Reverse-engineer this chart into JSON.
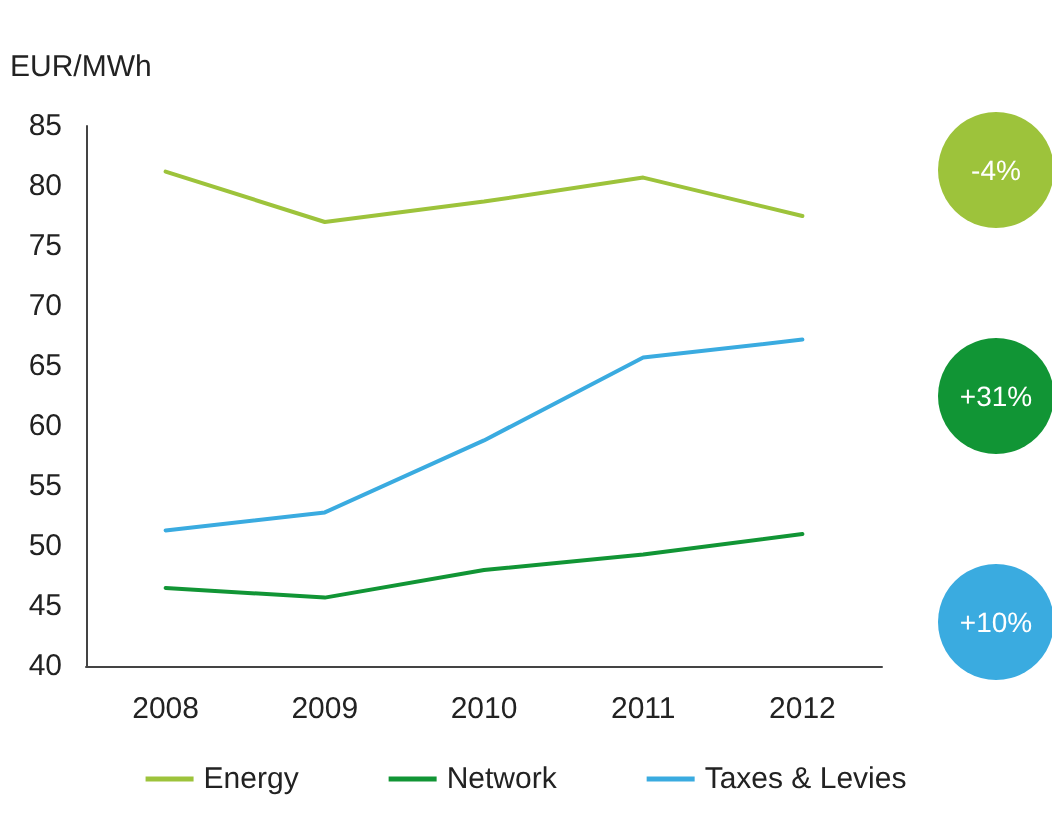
{
  "chart_data": {
    "type": "line",
    "ylabel": "EUR/MWh",
    "categories": [
      "2008",
      "2009",
      "2010",
      "2011",
      "2012"
    ],
    "series": [
      {
        "name": "Energy",
        "color": "#9dc33b",
        "values": [
          81.2,
          77,
          78.7,
          80.7,
          77.5
        ]
      },
      {
        "name": "Network",
        "color": "#119535",
        "values": [
          46.5,
          45.7,
          48,
          49.3,
          51
        ]
      },
      {
        "name": "Taxes & Levies",
        "color": "#3aabe0",
        "values": [
          51.3,
          52.8,
          58.8,
          65.7,
          67.2
        ]
      }
    ],
    "annotations": [
      "-4%",
      "+31%",
      "+10%"
    ],
    "ylim": [
      40,
      85
    ],
    "yticks": [
      40,
      45,
      50,
      55,
      60,
      65,
      70,
      75,
      80,
      85
    ],
    "grid": false,
    "legend": "bottom",
    "marker": "none",
    "line_style": "solid"
  }
}
